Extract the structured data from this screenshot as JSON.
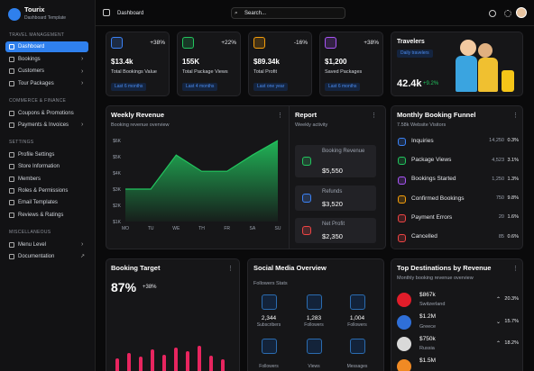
{
  "sidebar": {
    "brand": {
      "name": "Tourix",
      "subtitle": "Dashboard Template"
    },
    "sections": [
      {
        "title": "TRAVEL MANAGEMENT",
        "items": [
          {
            "label": "Dashboard",
            "active": true
          },
          {
            "label": "Bookings",
            "submenu": true
          },
          {
            "label": "Customers",
            "submenu": true
          },
          {
            "label": "Tour Packages",
            "submenu": true
          }
        ]
      },
      {
        "title": "COMMERCE & FINANCE",
        "items": [
          {
            "label": "Coupons & Promotions"
          },
          {
            "label": "Payments & Invoices",
            "submenu": true
          }
        ]
      },
      {
        "title": "SETTINGS",
        "items": [
          {
            "label": "Profile Settings"
          },
          {
            "label": "Store Information"
          },
          {
            "label": "Members"
          },
          {
            "label": "Roles & Permissions"
          },
          {
            "label": "Email Templates"
          },
          {
            "label": "Reviews & Ratings"
          }
        ]
      },
      {
        "title": "MISCELLANEOUS",
        "items": [
          {
            "label": "Menu Level",
            "submenu": true
          },
          {
            "label": "Documentation",
            "external": true
          }
        ]
      }
    ]
  },
  "topbar": {
    "page": "Dashboard",
    "search_placeholder": "Search..."
  },
  "stats": [
    {
      "change": "+38%",
      "value": "$13.4k",
      "label": "Total Bookings Value",
      "period": "Last 6 months",
      "color": "#3b82f6"
    },
    {
      "change": "+22%",
      "value": "155K",
      "label": "Total Package Views",
      "period": "Last 4 months",
      "color": "#22c55e"
    },
    {
      "change": "-16%",
      "value": "$89.34k",
      "label": "Total Profit",
      "period": "Last one year",
      "color": "#f59e0b"
    },
    {
      "change": "+38%",
      "value": "$1,200",
      "label": "Saved Packages",
      "period": "Last 6 months",
      "color": "#a855f7"
    }
  ],
  "travelers": {
    "title": "Travelers",
    "badge": "Daily travelers",
    "value": "42.4k",
    "change": "+9.2%"
  },
  "weekly_revenue": {
    "type": "area",
    "title": "Weekly Revenue",
    "subtitle": "Booking revenue overview",
    "categories": [
      "MO",
      "TU",
      "WE",
      "TH",
      "FR",
      "SA",
      "SU"
    ],
    "values": [
      3000,
      3000,
      5100,
      4100,
      4100,
      5100,
      6000
    ],
    "ylim": [
      1000,
      6000
    ],
    "yticks": [
      {
        "value": 1000,
        "label": "$1K"
      },
      {
        "value": 2000,
        "label": "$2K"
      },
      {
        "value": 3000,
        "label": "$3K"
      },
      {
        "value": 4000,
        "label": "$4K"
      },
      {
        "value": 5000,
        "label": "$5K"
      },
      {
        "value": 6000,
        "label": "$6K"
      }
    ],
    "color": "#22c55e"
  },
  "report": {
    "title": "Report",
    "subtitle": "Weekly activity",
    "items": [
      {
        "label": "Booking Revenue",
        "value": "$5,550",
        "color": "#22c55e"
      },
      {
        "label": "Refunds",
        "value": "$3,520",
        "color": "#3b82f6"
      },
      {
        "label": "Net Profit",
        "value": "$2,350",
        "color": "#ef4444"
      }
    ]
  },
  "funnel": {
    "title": "Monthly Booking Funnel",
    "subtitle": "7.58k Website Visitors",
    "rows": [
      {
        "label": "Inquiries",
        "count": "14,250",
        "percent": "0.3%",
        "color": "#3b82f6"
      },
      {
        "label": "Package Views",
        "count": "4,523",
        "percent": "3.1%",
        "color": "#22c55e"
      },
      {
        "label": "Bookings Started",
        "count": "1,250",
        "percent": "1.3%",
        "color": "#a855f7"
      },
      {
        "label": "Confirmed Bookings",
        "count": "750",
        "percent": "9.8%",
        "color": "#f59e0b"
      },
      {
        "label": "Payment Errors",
        "count": "20",
        "percent": "1.6%",
        "color": "#ef4444"
      },
      {
        "label": "Cancelled",
        "count": "85",
        "percent": "0.6%",
        "color": "#ef4444"
      }
    ]
  },
  "booking_target": {
    "title": "Booking Target",
    "value": "87%",
    "change": "+38%"
  },
  "social": {
    "title": "Social Media Overview",
    "subtitle": "Followers Stats",
    "items": [
      {
        "count": "2,344",
        "label": "Subscribers"
      },
      {
        "count": "1,283",
        "label": "Followers"
      },
      {
        "count": "1,004",
        "label": "Followers"
      },
      {
        "label": "Followers"
      },
      {
        "label": "Views"
      },
      {
        "label": "Messages"
      }
    ]
  },
  "destinations": {
    "title": "Top Destinations by Revenue",
    "subtitle": "Monthly booking revenue overview",
    "rows": [
      {
        "value": "$867k",
        "country": "Switzerland",
        "change": "20.3%",
        "direction": "up"
      },
      {
        "value": "$1.2M",
        "country": "Greece",
        "change": "15.7%",
        "direction": "down"
      },
      {
        "value": "$750k",
        "country": "Russia",
        "change": "18.2%",
        "direction": "up"
      },
      {
        "value": "$1.5M"
      }
    ]
  }
}
